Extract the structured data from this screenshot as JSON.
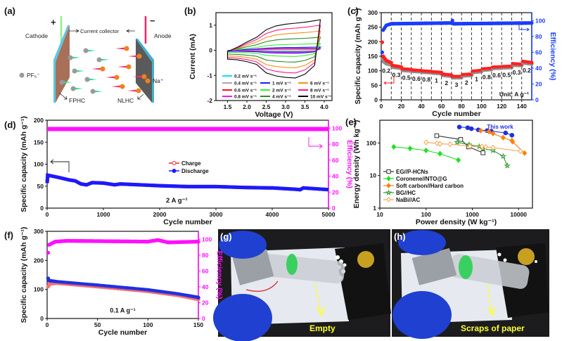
{
  "panel_labels": {
    "a": "(a)",
    "b": "(b)",
    "c": "(c)",
    "d": "(d)",
    "e": "(e)",
    "f": "(f)",
    "g": "(g)",
    "h": "(h)"
  },
  "schematic": {
    "plus": "+",
    "minus": "−",
    "cathode": "Cathode",
    "anode": "Anode",
    "current_collector": "Current collector",
    "pf6": "PF₆⁻",
    "na": "Na⁺",
    "fphc": "FPHC",
    "nlhc": "NLHC",
    "colors": {
      "collector": "#2ab8d8",
      "cathode_material": "#b07a60",
      "anode_material": "#555555",
      "anion": "#9a9a9a",
      "cation": "#f08020",
      "anion_tail": "#30e090",
      "cation_tail": "#ff2a70",
      "cathode_tab": "#90ee90",
      "anode_tab": "#ff2060"
    }
  },
  "photos": {
    "g_caption": "Empty",
    "h_caption": "Scraps of paper",
    "caption_color": "#ffff30"
  },
  "chart_data": [
    {
      "panel": "b",
      "type": "line",
      "xlabel": "Voltage (V)",
      "ylabel": "Current (mA)",
      "xlim": [
        1.2,
        4.2
      ],
      "ylim": [
        -2,
        1.5
      ],
      "xticks": [
        "1.5",
        "2.0",
        "2.5",
        "3.0",
        "3.5",
        "4.0"
      ],
      "yticks": [
        "-2",
        "-1",
        "0",
        "1"
      ],
      "curve_shape_10mV": {
        "voltage": [
          1.5,
          1.75,
          2.0,
          2.25,
          2.5,
          2.75,
          3.0,
          3.25,
          3.5,
          3.75,
          3.9
        ],
        "upper": [
          -0.05,
          0.12,
          0.33,
          0.52,
          0.82,
          0.97,
          1.04,
          1.08,
          1.12,
          1.18,
          1.22
        ],
        "lower": [
          -0.35,
          -0.38,
          -0.45,
          -0.56,
          -0.9,
          -1.02,
          -1.08,
          -1.1,
          -0.95,
          -0.6,
          1.22
        ]
      },
      "series": [
        {
          "name": "0.2 mV s⁻¹",
          "color": "#00e5ff",
          "current_at_3.9V_mA": 0.03
        },
        {
          "name": "0.4 mV s⁻¹",
          "color": "#a8a8a8",
          "current_at_3.9V_mA": 0.05
        },
        {
          "name": "0.6 mV s⁻¹",
          "color": "#ff1010",
          "current_at_3.9V_mA": 0.07
        },
        {
          "name": "0.8 mV s⁻¹",
          "color": "#ff10ff",
          "current_at_3.9V_mA": 0.09
        },
        {
          "name": "1 mV s⁻¹",
          "color": "#1a1aff",
          "current_at_3.9V_mA": 0.13
        },
        {
          "name": "2 mV s⁻¹",
          "color": "#30f030",
          "current_at_3.9V_mA": 0.27
        },
        {
          "name": "4 mV s⁻¹",
          "color": "#2a8a2a",
          "current_at_3.9V_mA": 0.52
        },
        {
          "name": "6 mV s⁻¹",
          "color": "#ff8c1a",
          "current_at_3.9V_mA": 0.77
        },
        {
          "name": "8 mV s⁻¹",
          "color": "#ff1a8c",
          "current_at_3.9V_mA": 1.0
        },
        {
          "name": "10 mV s⁻¹",
          "color": "#000000",
          "current_at_3.9V_mA": 1.22
        }
      ]
    },
    {
      "panel": "c",
      "type": "scatter",
      "xlabel": "Cycle number",
      "ylabel": "Specific capacity (mAh g⁻¹)",
      "y2label": "Efficiency (%)",
      "xlim": [
        0,
        150
      ],
      "ylim": [
        0,
        300
      ],
      "y2lim": [
        0,
        110
      ],
      "xticks": [
        "0",
        "20",
        "40",
        "60",
        "80",
        "100",
        "120",
        "140"
      ],
      "yticks": [
        "0",
        "50",
        "100",
        "150",
        "200",
        "250",
        "300"
      ],
      "y2ticks": [
        "0",
        "20",
        "40",
        "60",
        "80",
        "100"
      ],
      "rate_labels": [
        "0.2",
        "0.3",
        "0.5",
        "0.6",
        "0.8",
        "1",
        "2",
        "3",
        "2",
        "1",
        "0.8",
        "0.6",
        "0.5",
        "0.3",
        "0.2"
      ],
      "unit_label": "Unit: A g⁻¹",
      "colors": {
        "charge": "#ff2020",
        "discharge": "#909090",
        "efficiency": "#1a3cff"
      },
      "charge_capacity": [
        [
          1,
          198
        ],
        [
          2,
          150
        ],
        [
          5,
          135
        ],
        [
          10,
          128
        ],
        [
          11,
          118
        ],
        [
          20,
          113
        ],
        [
          21,
          106
        ],
        [
          30,
          104
        ],
        [
          31,
          102
        ],
        [
          40,
          100
        ],
        [
          41,
          99
        ],
        [
          50,
          97
        ],
        [
          51,
          96
        ],
        [
          60,
          94
        ],
        [
          61,
          88
        ],
        [
          70,
          85
        ],
        [
          71,
          80
        ],
        [
          80,
          80
        ],
        [
          81,
          86
        ],
        [
          90,
          88
        ],
        [
          91,
          98
        ],
        [
          100,
          101
        ],
        [
          101,
          106
        ],
        [
          110,
          108
        ],
        [
          111,
          112
        ],
        [
          120,
          113
        ],
        [
          121,
          114
        ],
        [
          130,
          115
        ],
        [
          131,
          124
        ],
        [
          140,
          122
        ],
        [
          141,
          132
        ],
        [
          150,
          128
        ]
      ],
      "discharge_capacity": [
        [
          1,
          140
        ],
        [
          2,
          132
        ],
        [
          5,
          124
        ],
        [
          10,
          120
        ],
        [
          11,
          112
        ],
        [
          20,
          108
        ],
        [
          21,
          101
        ],
        [
          30,
          99
        ],
        [
          31,
          98
        ],
        [
          40,
          96
        ],
        [
          41,
          95
        ],
        [
          50,
          93
        ],
        [
          51,
          92
        ],
        [
          60,
          90
        ],
        [
          61,
          84
        ],
        [
          70,
          81
        ],
        [
          71,
          76
        ],
        [
          80,
          76
        ],
        [
          81,
          82
        ],
        [
          90,
          84
        ],
        [
          91,
          94
        ],
        [
          100,
          97
        ],
        [
          101,
          102
        ],
        [
          110,
          104
        ],
        [
          111,
          108
        ],
        [
          120,
          109
        ],
        [
          121,
          110
        ],
        [
          130,
          111
        ],
        [
          131,
          119
        ],
        [
          140,
          118
        ],
        [
          141,
          127
        ],
        [
          150,
          123
        ]
      ],
      "efficiency": [
        [
          1,
          60
        ],
        [
          2,
          88
        ],
        [
          5,
          94
        ],
        [
          10,
          96
        ],
        [
          70,
          97
        ],
        [
          71,
          100
        ],
        [
          72,
          96
        ],
        [
          150,
          97
        ]
      ]
    },
    {
      "panel": "d",
      "type": "scatter",
      "xlabel": "Cycle number",
      "ylabel": "Specific capacity (mAh g⁻¹)",
      "y2label": "Efficiency (%)",
      "xlim": [
        0,
        5000
      ],
      "ylim": [
        0,
        200
      ],
      "y2lim": [
        0,
        110
      ],
      "xticks": [
        "0",
        "1000",
        "2000",
        "3000",
        "4000",
        "5000"
      ],
      "yticks": [
        "0",
        "50",
        "100",
        "150",
        "200"
      ],
      "y2ticks": [
        "0",
        "20",
        "40",
        "60",
        "80",
        "100"
      ],
      "annotation": "2 A g⁻¹",
      "legend": [
        {
          "name": "Charge",
          "color": "#ff2020"
        },
        {
          "name": "Discharge",
          "color": "#1a1aff"
        }
      ],
      "efficiency_color": "#ff10ff",
      "discharge_capacity": [
        [
          0,
          57
        ],
        [
          10,
          75
        ],
        [
          200,
          70
        ],
        [
          400,
          64
        ],
        [
          500,
          62
        ],
        [
          600,
          55
        ],
        [
          700,
          53
        ],
        [
          800,
          58
        ],
        [
          1000,
          57
        ],
        [
          1200,
          53
        ],
        [
          1300,
          55
        ],
        [
          2000,
          51
        ],
        [
          2500,
          49
        ],
        [
          3000,
          49
        ],
        [
          3500,
          47
        ],
        [
          4000,
          46
        ],
        [
          4400,
          43
        ],
        [
          4500,
          42
        ],
        [
          4550,
          46
        ],
        [
          5000,
          42
        ]
      ],
      "efficiency": [
        [
          0,
          99
        ],
        [
          5000,
          99
        ]
      ]
    },
    {
      "panel": "e",
      "type": "scatter",
      "xlabel": "Power density (W kg⁻¹)",
      "ylabel": "Energy density (Wh kg⁻¹)",
      "xscale": "log",
      "yscale": "log",
      "xlim": [
        10,
        20000
      ],
      "ylim": [
        1,
        500
      ],
      "xticks": [
        "10",
        "100",
        "1000",
        "10000"
      ],
      "yticks": [
        "1",
        "10",
        "100"
      ],
      "annotation": "This work",
      "series": [
        {
          "name": "This work",
          "color": "#2030e0",
          "marker": "circle",
          "filled": true,
          "legend": false,
          "points": [
            [
              525,
              310
            ],
            [
              795,
              295
            ],
            [
              955,
              275
            ],
            [
              1350,
              253
            ],
            [
              2090,
              240
            ],
            [
              2580,
              230
            ],
            [
              5250,
              204
            ],
            [
              7200,
              173
            ]
          ]
        },
        {
          "name": "EG//P-HCNs",
          "color": "#333333",
          "marker": "square",
          "filled": false,
          "legend": true,
          "points": [
            [
              170,
              167
            ],
            [
              560,
              129
            ],
            [
              830,
              76
            ],
            [
              1700,
              50
            ]
          ]
        },
        {
          "name": "Coronene//NTO@G",
          "color": "#20e020",
          "marker": "diamond",
          "filled": true,
          "legend": true,
          "points": [
            [
              20,
              76
            ],
            [
              45,
              68
            ],
            [
              100,
              59
            ],
            [
              200,
              47
            ],
            [
              500,
              30
            ]
          ]
        },
        {
          "name": "Soft carbon//Hard carbon",
          "color": "#ff8010",
          "marker": "diamond",
          "filled": true,
          "legend": true,
          "points": [
            [
              1520,
              240
            ],
            [
              2300,
              223
            ],
            [
              2800,
              195
            ],
            [
              4650,
              146
            ],
            [
              7200,
              118
            ],
            [
              7450,
              109
            ],
            [
              13500,
              49
            ]
          ]
        },
        {
          "name": "BG//HC",
          "color": "#2a9a2a",
          "marker": "star",
          "filled": false,
          "legend": true,
          "points": [
            [
              470,
              105
            ],
            [
              850,
              89
            ],
            [
              1410,
              78
            ],
            [
              1700,
              67
            ],
            [
              2800,
              59
            ],
            [
              4650,
              39
            ],
            [
              5700,
              20
            ]
          ]
        },
        {
          "name": "NaBi//AC",
          "color": "#ffa050",
          "marker": "diamond",
          "filled": false,
          "legend": true,
          "points": [
            [
              100,
              105
            ],
            [
              173,
              98
            ],
            [
              200,
              94
            ],
            [
              330,
              92
            ],
            [
              890,
              79
            ],
            [
              1620,
              78
            ],
            [
              1950,
              76
            ],
            [
              2800,
              72
            ],
            [
              11000,
              56
            ]
          ]
        }
      ]
    },
    {
      "panel": "f",
      "type": "scatter",
      "xlabel": "Cycle number",
      "ylabel": "Specific capacity (mAh g⁻¹)",
      "y2label": "Efficiency (%)",
      "xlim": [
        0,
        150
      ],
      "ylim": [
        0,
        300
      ],
      "y2lim": [
        0,
        110
      ],
      "xticks": [
        "0",
        "50",
        "100",
        "150"
      ],
      "yticks": [
        "0",
        "100",
        "200",
        "300"
      ],
      "y2ticks": [
        "0",
        "20",
        "40",
        "60",
        "80",
        "100"
      ],
      "annotation": "0.1 A g⁻¹",
      "colors": {
        "charge": "#ff7070",
        "discharge": "#2030e0",
        "efficiency": "#ff10ff"
      },
      "discharge_capacity": [
        [
          1,
          138
        ],
        [
          2,
          130
        ],
        [
          10,
          126
        ],
        [
          50,
          114
        ],
        [
          100,
          98
        ],
        [
          130,
          84
        ],
        [
          150,
          72
        ]
      ],
      "charge_capacity": [
        [
          1,
          110
        ],
        [
          3,
          120
        ],
        [
          10,
          122
        ],
        [
          50,
          110
        ],
        [
          100,
          94
        ],
        [
          130,
          80
        ],
        [
          150,
          66
        ]
      ],
      "efficiency": [
        [
          1,
          83
        ],
        [
          2,
          93
        ],
        [
          8,
          97
        ],
        [
          20,
          98
        ],
        [
          100,
          97
        ],
        [
          110,
          99
        ],
        [
          120,
          96
        ],
        [
          150,
          97
        ]
      ]
    }
  ]
}
